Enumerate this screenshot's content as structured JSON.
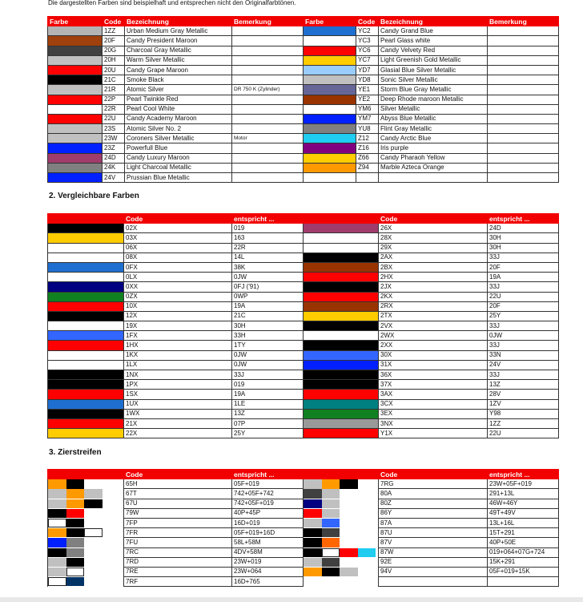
{
  "note": "Die dargestellten Farben sind beispielhaft und entsprechen nicht den Originalfarbtönen.",
  "section1": {
    "headers": {
      "farbe": "Farbe",
      "code": "Code",
      "bezeichnung": "Bezeichnung",
      "bemerkung": "Bemerkung"
    },
    "left": [
      {
        "color": "#b4b4b4",
        "code": "1ZZ",
        "name": "Urban Medium Gray Metallic",
        "remark": ""
      },
      {
        "color": "#a0400c",
        "code": "20F",
        "name": "Candy President Maroon",
        "remark": ""
      },
      {
        "color": "#404040",
        "code": "20G",
        "name": "Charcoal Gray Metallic",
        "remark": ""
      },
      {
        "color": "#c0c0c0",
        "code": "20H",
        "name": "Warm Silver Metallic",
        "remark": ""
      },
      {
        "color": "#ff0000",
        "code": "20U",
        "name": "Candy Grape Maroon",
        "remark": ""
      },
      {
        "color": "#000000",
        "code": "21C",
        "name": "Smoke Black",
        "remark": ""
      },
      {
        "color": "#c0c0c0",
        "code": "21R",
        "name": "Atomic Silver",
        "remark": "DR 750 K (Zylinder)"
      },
      {
        "color": "#ff0000",
        "code": "22P",
        "name": "Pearl Twinkle Red",
        "remark": ""
      },
      {
        "color": "#ffffff",
        "code": "22R",
        "name": "Pearl Cool White",
        "remark": ""
      },
      {
        "color": "#ff0000",
        "code": "22U",
        "name": "Candy Academy Maroon",
        "remark": ""
      },
      {
        "color": "#c0c0c0",
        "code": "23S",
        "name": "Atomic Silver No. 2",
        "remark": ""
      },
      {
        "color": "#c0c0c0",
        "code": "23W",
        "name": "Coroners Silver Metallic",
        "remark": "Motor"
      },
      {
        "color": "#0020ff",
        "code": "23Z",
        "name": "Powerfull Blue",
        "remark": ""
      },
      {
        "color": "#a03c6c",
        "code": "24D",
        "name": "Candy Luxury Maroon",
        "remark": ""
      },
      {
        "color": "#808080",
        "code": "24K",
        "name": "Light Charcoal Metallic",
        "remark": ""
      },
      {
        "color": "#0020ff",
        "code": "24V",
        "name": "Prussian Blue Metallic",
        "remark": ""
      }
    ],
    "right": [
      {
        "color": "#1f6fd0",
        "code": "YC2",
        "name": "Candy Grand Blue",
        "remark": ""
      },
      {
        "color": "#ffffff",
        "code": "YC3",
        "name": "Pearl Glass white",
        "remark": ""
      },
      {
        "color": "#ff0000",
        "code": "YC6",
        "name": "Candy Velvety Red",
        "remark": ""
      },
      {
        "color": "#ffcc00",
        "code": "YC7",
        "name": "Light Greenish Gold Metallic",
        "remark": ""
      },
      {
        "color": "#99ccff",
        "code": "YD7",
        "name": "Glasial Blue Silver Metallic",
        "remark": ""
      },
      {
        "color": "#c0c0c0",
        "code": "YD8",
        "name": "Sonic Silver Metallic",
        "remark": ""
      },
      {
        "color": "#666699",
        "code": "YE1",
        "name": "Storm Blue Gray Metallic",
        "remark": ""
      },
      {
        "color": "#993300",
        "code": "YE2",
        "name": "Deep Rhode maroon Metallic",
        "remark": ""
      },
      {
        "color": "#ffffff",
        "code": "YM6",
        "name": "Silver Metallic",
        "remark": ""
      },
      {
        "color": "#0020ff",
        "code": "YM7",
        "name": "Abyss Blue Metallic",
        "remark": ""
      },
      {
        "color": "#808080",
        "code": "YU8",
        "name": "Flint Gray Metallic",
        "remark": ""
      },
      {
        "color": "#20ccf0",
        "code": "Z12",
        "name": "Candy Arctic Blue",
        "remark": ""
      },
      {
        "color": "#800080",
        "code": "Z16",
        "name": "Iris purple",
        "remark": ""
      },
      {
        "color": "#ffcc00",
        "code": "Z66",
        "name": "Candy Pharaoh Yellow",
        "remark": ""
      },
      {
        "color": "#ff9900",
        "code": "Z94",
        "name": "Marble Azteca Orange",
        "remark": ""
      },
      {
        "color": "#ffffff",
        "code": "",
        "name": "",
        "remark": ""
      }
    ]
  },
  "section2": {
    "title": "2. Vergleichbare Farben",
    "headers": {
      "code": "Code",
      "entspricht": "entspricht ..."
    },
    "left": [
      {
        "color": "#000000",
        "code": "02X",
        "eq": "019"
      },
      {
        "color": "#ffcc00",
        "code": "03X",
        "eq": "163"
      },
      {
        "color": "#ffffff",
        "code": "06X",
        "eq": "22R"
      },
      {
        "color": "#ffffff",
        "code": "08X",
        "eq": "14L"
      },
      {
        "color": "#1f6fd0",
        "code": "0FX",
        "eq": "38K"
      },
      {
        "color": "#ffffff",
        "code": "0LX",
        "eq": "0JW"
      },
      {
        "color": "#000080",
        "code": "0XX",
        "eq": "0FJ ('91)"
      },
      {
        "color": "#108020",
        "code": "0ZX",
        "eq": "0WP"
      },
      {
        "color": "#ff0000",
        "code": "10X",
        "eq": "19A"
      },
      {
        "color": "#000000",
        "code": "12X",
        "eq": "21C"
      },
      {
        "color": "#ffffff",
        "code": "19X",
        "eq": "30H"
      },
      {
        "color": "#3366ff",
        "code": "1FX",
        "eq": "33H"
      },
      {
        "color": "#ff0000",
        "code": "1HX",
        "eq": "1TY"
      },
      {
        "color": "#ffffff",
        "code": "1KX",
        "eq": "0JW"
      },
      {
        "color": "#ffffff",
        "code": "1LX",
        "eq": "0JW"
      },
      {
        "color": "#000000",
        "code": "1NX",
        "eq": "33J"
      },
      {
        "color": "#000000",
        "code": "1PX",
        "eq": "019"
      },
      {
        "color": "#ff0000",
        "code": "1SX",
        "eq": "19A"
      },
      {
        "color": "#1f6fd0",
        "code": "1UX",
        "eq": "1LE"
      },
      {
        "color": "#000000",
        "code": "1WX",
        "eq": "13Z"
      },
      {
        "color": "#ff0000",
        "code": "21X",
        "eq": "07P"
      },
      {
        "color": "#ffcc00",
        "code": "22X",
        "eq": "25Y"
      }
    ],
    "right": [
      {
        "color": "#a03c6c",
        "code": "26X",
        "eq": "24D"
      },
      {
        "color": "#ffffff",
        "code": "28X",
        "eq": "30H"
      },
      {
        "color": "#ffffff",
        "code": "29X",
        "eq": "30H"
      },
      {
        "color": "#000000",
        "code": "2AX",
        "eq": "33J"
      },
      {
        "color": "#993300",
        "code": "2BX",
        "eq": "20F"
      },
      {
        "color": "#ff0000",
        "code": "2HX",
        "eq": "19A"
      },
      {
        "color": "#000000",
        "code": "2JX",
        "eq": "33J"
      },
      {
        "color": "#ff0000",
        "code": "2KX",
        "eq": "22U"
      },
      {
        "color": "#993300",
        "code": "2RX",
        "eq": "20F"
      },
      {
        "color": "#ffcc00",
        "code": "2TX",
        "eq": "25Y"
      },
      {
        "color": "#000000",
        "code": "2VX",
        "eq": "33J"
      },
      {
        "color": "#ffffff",
        "code": "2WX",
        "eq": "0JW"
      },
      {
        "color": "#000000",
        "code": "2XX",
        "eq": "33J"
      },
      {
        "color": "#3366ff",
        "code": "30X",
        "eq": "33N"
      },
      {
        "color": "#0020ff",
        "code": "31X",
        "eq": "24V"
      },
      {
        "color": "#000000",
        "code": "36X",
        "eq": "33J"
      },
      {
        "color": "#000000",
        "code": "37X",
        "eq": "13Z"
      },
      {
        "color": "#ff0000",
        "code": "3AX",
        "eq": "28V"
      },
      {
        "color": "#008080",
        "code": "3CX",
        "eq": "1ZV"
      },
      {
        "color": "#108020",
        "code": "3EX",
        "eq": "Y98"
      },
      {
        "color": "#999999",
        "code": "3NX",
        "eq": "1ZZ"
      },
      {
        "color": "#ff0000",
        "code": "Y1X",
        "eq": "22U"
      }
    ]
  },
  "section3": {
    "title": "3. Zierstreifen",
    "headers": {
      "code": "Code",
      "entspricht": "entspricht ..."
    },
    "left": [
      {
        "colors": [
          "#ff9900",
          "#000000"
        ],
        "code": "65H",
        "eq": "05F+019"
      },
      {
        "colors": [
          "#c0c0c0",
          "#ff9900",
          "#c0c0c0"
        ],
        "code": "67T",
        "eq": "742+05F+742"
      },
      {
        "colors": [
          "#c0c0c0",
          "#ff9900",
          "#000000"
        ],
        "code": "67U",
        "eq": "742+05F+019"
      },
      {
        "colors": [
          "#000000",
          "#ff0000"
        ],
        "code": "79W",
        "eq": "40P+45P"
      },
      {
        "colors": [
          "#ffffff",
          "#000000"
        ],
        "code": "7FP",
        "eq": "16D+019"
      },
      {
        "colors": [
          "#ff9900",
          "#000000",
          "#ffffff"
        ],
        "code": "7FR",
        "eq": "05F+019+16D"
      },
      {
        "colors": [
          "#0020ff",
          "#808080"
        ],
        "code": "7FU",
        "eq": "58L+58M"
      },
      {
        "colors": [
          "#000000",
          "#808080"
        ],
        "code": "7RC",
        "eq": "4DV+58M"
      },
      {
        "colors": [
          "#c0c0c0",
          "#000000"
        ],
        "code": "7RD",
        "eq": "23W+019"
      },
      {
        "colors": [
          "#c0c0c0",
          "#ffffff"
        ],
        "code": "7RE",
        "eq": "23W+064"
      },
      {
        "colors": [
          "#ffffff",
          "#003366"
        ],
        "code": "7RF",
        "eq": "16D+765"
      }
    ],
    "right": [
      {
        "colors": [
          "#c0c0c0",
          "#ff9900",
          "#000000"
        ],
        "code": "7RG",
        "eq": "23W+05F+019"
      },
      {
        "colors": [
          "#404040",
          "#c0c0c0"
        ],
        "code": "80A",
        "eq": "291+13L"
      },
      {
        "colors": [
          "#000080",
          "#c0c0c0"
        ],
        "code": "80Z",
        "eq": "46W+46Y"
      },
      {
        "colors": [
          "#ff0000",
          "#c0c0c0"
        ],
        "code": "86Y",
        "eq": "49T+49V"
      },
      {
        "colors": [
          "#c0c0c0",
          "#3366ff"
        ],
        "code": "87A",
        "eq": "13L+16L"
      },
      {
        "colors": [
          "#000000",
          "#404040"
        ],
        "code": "87U",
        "eq": "15T+291"
      },
      {
        "colors": [
          "#000000",
          "#ff6600"
        ],
        "code": "87V",
        "eq": "40P+50E"
      },
      {
        "colors": [
          "#000000",
          "#ffffff",
          "#ff0000",
          "#20ccf0"
        ],
        "code": "87W",
        "eq": "019+064+07G+724"
      },
      {
        "colors": [
          "#c0c0c0",
          "#404040"
        ],
        "code": "92E",
        "eq": "15K+291"
      },
      {
        "colors": [
          "#ff9900",
          "#000000",
          "#c0c0c0"
        ],
        "code": "94V",
        "eq": "05F+019+15K"
      },
      {
        "colors": [],
        "code": "",
        "eq": ""
      }
    ]
  }
}
